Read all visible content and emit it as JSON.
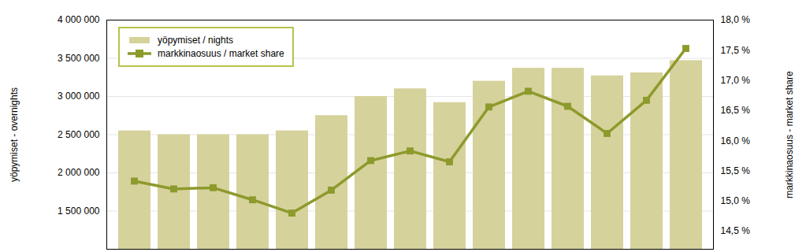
{
  "chart_data": {
    "type": "bar",
    "categories": [
      null,
      null,
      null,
      null,
      null,
      null,
      null,
      null,
      null,
      null,
      null,
      null,
      null,
      null,
      null
    ],
    "ylabel": "yöpymiset - overnights",
    "y2label": "markkinaosuus - market share",
    "ylim": [
      1000000,
      4000000
    ],
    "yticks": [
      {
        "value": 1500000,
        "label": "1 500 000"
      },
      {
        "value": 2000000,
        "label": "2 000 000"
      },
      {
        "value": 2500000,
        "label": "2 500 000"
      },
      {
        "value": 3000000,
        "label": "3 000 000"
      },
      {
        "value": 3500000,
        "label": "3 500 000"
      },
      {
        "value": 4000000,
        "label": "4 000 000"
      }
    ],
    "y2lim": [
      14.2,
      18.0
    ],
    "y2ticks": [
      {
        "value": 14.5,
        "label": "14,5 %"
      },
      {
        "value": 15,
        "label": "15,0 %"
      },
      {
        "value": 15.5,
        "label": "15,5 %"
      },
      {
        "value": 16,
        "label": "16,0 %"
      },
      {
        "value": 16.5,
        "label": "16,5 %"
      },
      {
        "value": 17,
        "label": "17,0 %"
      },
      {
        "value": 17.5,
        "label": "17,5 %"
      },
      {
        "value": 18,
        "label": "18,0 %"
      }
    ],
    "grid": true,
    "legend": "upper left",
    "series": [
      {
        "name": "yöpymiset / nights",
        "type": "bar",
        "color": "#d6d29c",
        "values": [
          2550000,
          2500000,
          2500000,
          2500000,
          2550000,
          2750000,
          3000000,
          3100000,
          2920000,
          3200000,
          3370000,
          3370000,
          3270000,
          3310000,
          3470000
        ]
      },
      {
        "name": "markkinaosuus / market share",
        "type": "line",
        "axis": "y2",
        "color": "#8d9a2c",
        "marker": "square",
        "values": [
          15.33,
          15.2,
          15.22,
          15.02,
          14.8,
          15.18,
          15.67,
          15.83,
          15.65,
          16.56,
          16.82,
          16.57,
          16.12,
          16.67,
          17.53
        ]
      }
    ]
  }
}
